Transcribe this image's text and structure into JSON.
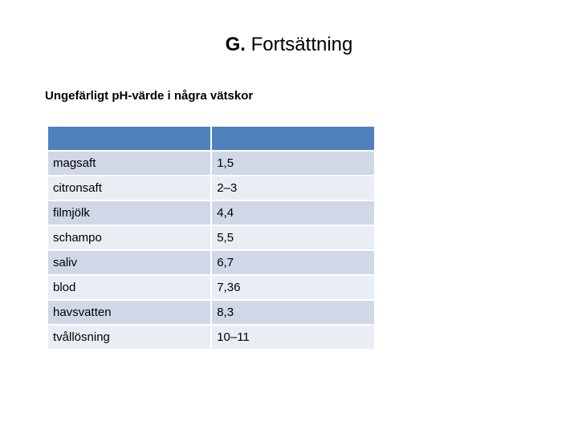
{
  "slide": {
    "title_prefix": "G.",
    "title_text": "Fortsättning",
    "subtitle": "Ungefärligt pH-värde i några vätskor"
  },
  "table": {
    "headers": [
      "",
      ""
    ],
    "rows": [
      {
        "liquid": "magsaft",
        "ph": "1,5"
      },
      {
        "liquid": "citronsaft",
        "ph": "2–3"
      },
      {
        "liquid": "filmjölk",
        "ph": "4,4"
      },
      {
        "liquid": "schampo",
        "ph": "5,5"
      },
      {
        "liquid": "saliv",
        "ph": "6,7"
      },
      {
        "liquid": "blod",
        "ph": "7,36"
      },
      {
        "liquid": "havsvatten",
        "ph": "8,3"
      },
      {
        "liquid": "tvållösning",
        "ph": "10–11"
      }
    ]
  },
  "colors": {
    "header_fill": "#4f81bd",
    "row_fill_dark": "#d0d8e8",
    "row_fill_light": "#e9edf4"
  }
}
